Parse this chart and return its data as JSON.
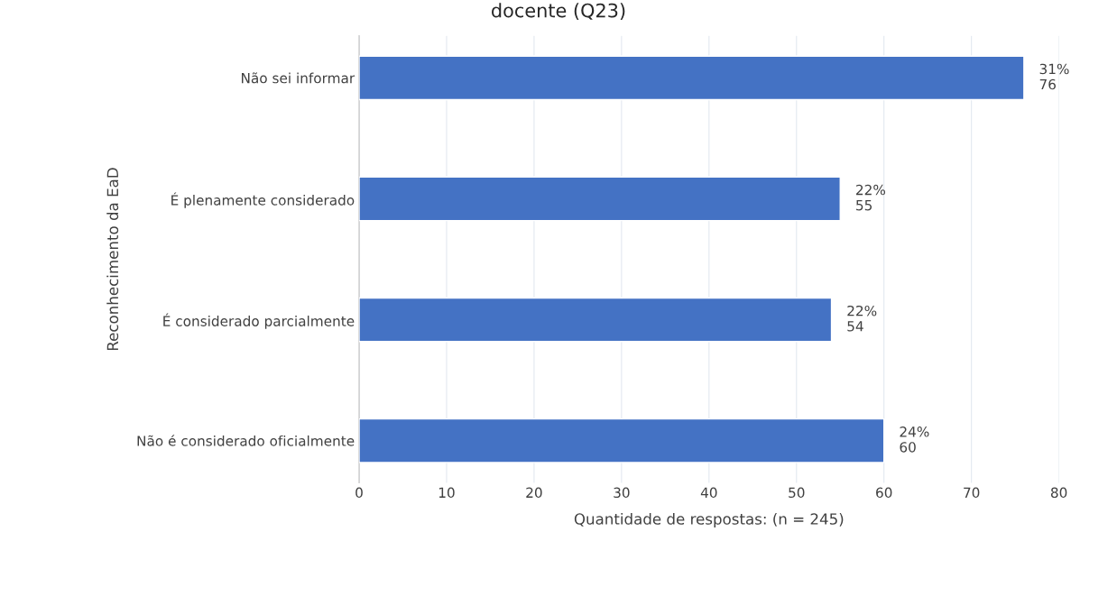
{
  "chart_data": {
    "type": "bar",
    "orientation": "horizontal",
    "title": "docente (Q23)",
    "xlabel": "Quantidade de respostas: (n = 245)",
    "ylabel": "Reconhecimento da EaD",
    "categories": [
      "Não sei informar",
      "É plenamente considerado",
      "É considerado parcialmente",
      "Não é considerado oficialmente"
    ],
    "values": [
      76,
      55,
      54,
      60
    ],
    "color": "#4472c4",
    "value_labels": [
      "31%\n76",
      "22%\n55",
      "22%\n54",
      "24%\n60"
    ],
    "xlim": [
      0,
      80
    ],
    "xticks": [
      0,
      10,
      20,
      30,
      40,
      50,
      60,
      70,
      80
    ],
    "grid": "x",
    "legend": false
  }
}
